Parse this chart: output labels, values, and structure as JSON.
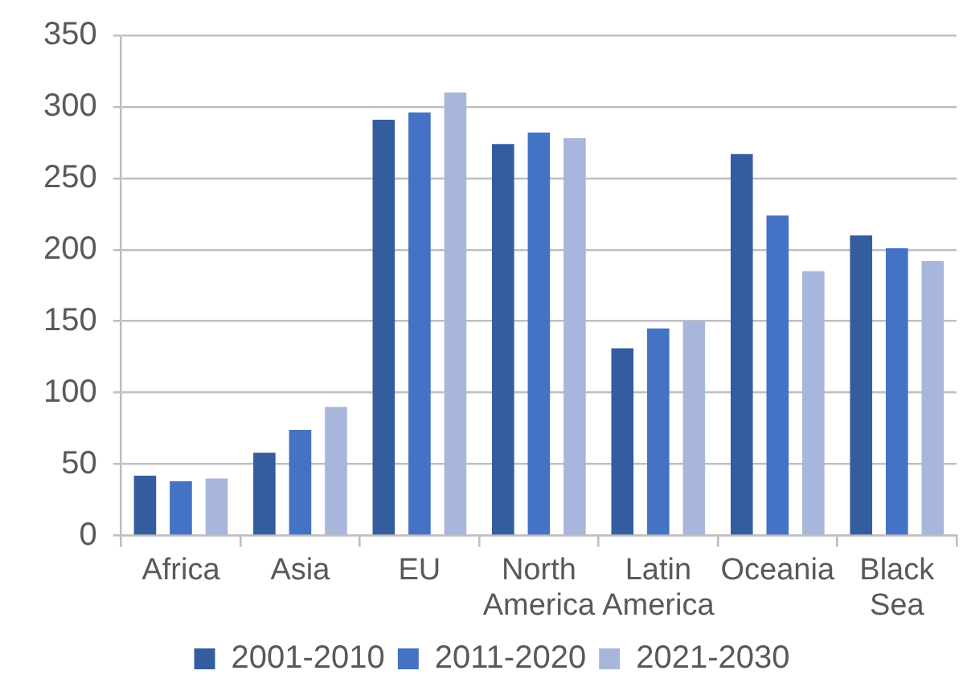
{
  "chart_data": {
    "type": "bar",
    "categories": [
      "Africa",
      "Asia",
      "EU",
      "North America",
      "Latin America",
      "Oceania",
      "Black Sea"
    ],
    "series": [
      {
        "name": "2001-2010",
        "color": "#345da0",
        "values": [
          42,
          58,
          291,
          274,
          131,
          267,
          210
        ]
      },
      {
        "name": "2011-2020",
        "color": "#4472c4",
        "values": [
          38,
          74,
          296,
          282,
          145,
          224,
          201
        ]
      },
      {
        "name": "2021-2030",
        "color": "#a8b6db",
        "values": [
          40,
          90,
          310,
          278,
          150,
          185,
          192
        ]
      }
    ],
    "ylim": [
      0,
      350
    ],
    "yticks": [
      0,
      50,
      100,
      150,
      200,
      250,
      300,
      350
    ],
    "grid": "y",
    "legend": "bottom"
  }
}
